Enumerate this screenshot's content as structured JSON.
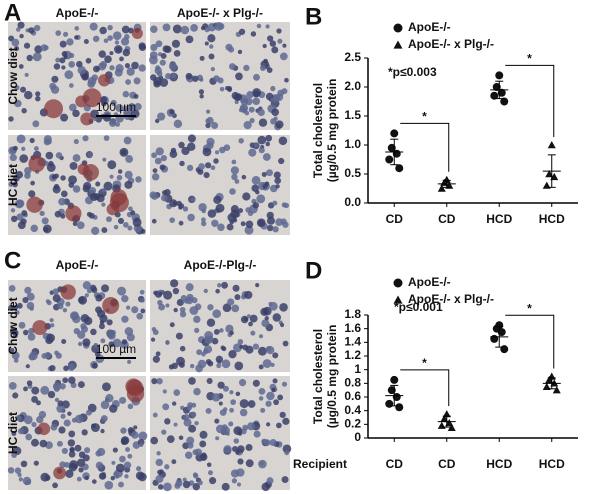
{
  "panels": [
    {
      "letter": "A",
      "columns": [
        "ApoE-/-",
        "ApoE-/- x Plg-/-"
      ],
      "rows": [
        "Chow diet",
        "HC diet"
      ],
      "scale_bar": "100 µm"
    },
    {
      "letter": "C",
      "columns": [
        "ApoE-/-",
        "ApoE-/-Plg-/-"
      ],
      "rows": [
        "Chow diet",
        "HC diet"
      ],
      "scale_bar": "100 µm"
    }
  ],
  "chart_data": [
    {
      "type": "scatter",
      "letter": "B",
      "ylabel": "Total cholesterol\n(µg/0.5 mg protein",
      "annotation": "*p≤0.003",
      "categories": [
        "CD",
        "CD",
        "HCD",
        "HCD"
      ],
      "series": [
        {
          "name": "ApoE-/-",
          "marker": "circle",
          "color": "#111111",
          "values": [
            [
              1.2,
              0.95,
              0.85,
              0.75,
              0.6
            ],
            null,
            [
              2.2,
              2.0,
              1.9,
              1.85,
              1.75
            ],
            null
          ],
          "means": [
            0.88,
            null,
            1.95,
            null
          ],
          "errors": [
            0.22,
            null,
            0.15,
            null
          ]
        },
        {
          "name": "ApoE-/- x Plg-/-",
          "marker": "triangle",
          "color": "#111111",
          "values": [
            null,
            [
              0.4,
              0.35,
              0.3,
              0.25
            ],
            null,
            [
              1.0,
              0.5,
              0.45,
              0.3
            ]
          ],
          "means": [
            null,
            0.33,
            null,
            0.55
          ],
          "errors": [
            null,
            0.06,
            null,
            0.28
          ]
        }
      ],
      "significance": [
        {
          "from": 0,
          "to": 1,
          "label": "*"
        },
        {
          "from": 2,
          "to": 3,
          "label": "*"
        }
      ],
      "ylim": [
        0,
        2.5
      ],
      "yticks": [
        {
          "value": 0,
          "label": "0.0"
        },
        {
          "value": 0.5,
          "label": "0.5"
        },
        {
          "value": 1,
          "label": "1.0"
        },
        {
          "value": 1.5,
          "label": "1.5"
        },
        {
          "value": 2,
          "label": "2.0"
        },
        {
          "value": 2.5,
          "label": "2.5"
        }
      ]
    },
    {
      "type": "scatter",
      "letter": "D",
      "ylabel": "Total cholesterol\n(µg/0.5 mg protein",
      "xlabel": "Recipient",
      "annotation": "*p≤0.001",
      "categories": [
        "CD",
        "CD",
        "HCD",
        "HCD"
      ],
      "series": [
        {
          "name": "ApoE-/-",
          "marker": "circle",
          "color": "#111111",
          "values": [
            [
              0.85,
              0.7,
              0.6,
              0.5,
              0.45
            ],
            null,
            [
              1.65,
              1.6,
              1.55,
              1.45,
              1.3
            ],
            null
          ],
          "means": [
            0.62,
            null,
            1.48,
            null
          ],
          "errors": [
            0.15,
            null,
            0.15,
            null
          ]
        },
        {
          "name": "ApoE-/- x Plg-/-",
          "marker": "triangle",
          "color": "#111111",
          "values": [
            null,
            [
              0.35,
              0.28,
              0.22,
              0.18,
              0.15
            ],
            null,
            [
              0.9,
              0.85,
              0.8,
              0.75,
              0.7
            ]
          ],
          "means": [
            null,
            0.24,
            null,
            0.8
          ],
          "errors": [
            null,
            0.08,
            null,
            0.08
          ]
        }
      ],
      "significance": [
        {
          "from": 0,
          "to": 1,
          "label": "*"
        },
        {
          "from": 2,
          "to": 3,
          "label": "*"
        }
      ],
      "ylim": [
        0,
        1.8
      ],
      "yticks": [
        0,
        0.2,
        0.4,
        0.6,
        0.8,
        1,
        1.2,
        1.4,
        1.6,
        1.8
      ]
    }
  ]
}
